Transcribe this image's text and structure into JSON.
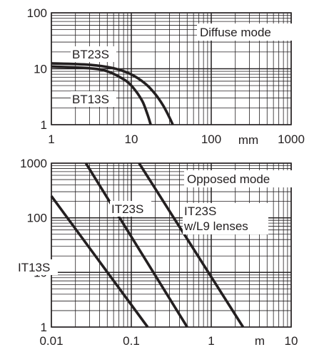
{
  "chart_data": [
    {
      "type": "line",
      "x_scale": "log",
      "y_scale": "log",
      "xlim": [
        1,
        1000
      ],
      "ylim": [
        1,
        100
      ],
      "x_tick_labels": [
        "1",
        "10",
        "100",
        "1000"
      ],
      "x_unit": "mm",
      "y_tick_labels": [
        "1",
        "10",
        "100"
      ],
      "grid": true,
      "mode_label": "Diffuse mode",
      "series": [
        {
          "name": "BT23S",
          "x": [
            1,
            3,
            6,
            10,
            15,
            20,
            25,
            30,
            33
          ],
          "y": [
            12.5,
            11.8,
            10.2,
            7.9,
            5.4,
            3.5,
            2.2,
            1.35,
            1.0
          ]
        },
        {
          "name": "BT13S",
          "x": [
            1,
            3,
            5,
            8,
            10,
            12,
            14,
            16,
            17.5
          ],
          "y": [
            11.0,
            10.2,
            9.0,
            6.5,
            5.0,
            3.6,
            2.5,
            1.5,
            1.0
          ]
        }
      ]
    },
    {
      "type": "line",
      "x_scale": "log",
      "y_scale": "log",
      "xlim": [
        0.01,
        10
      ],
      "ylim": [
        1,
        1000
      ],
      "x_tick_labels": [
        "0.01",
        "0.1",
        "1",
        "10"
      ],
      "x_unit": "m",
      "y_tick_labels": [
        "1",
        "10",
        "100",
        "1000"
      ],
      "grid": true,
      "mode_label": "Opposed mode",
      "series": [
        {
          "name": "IT13S",
          "x": [
            0.01,
            0.16
          ],
          "y": [
            250,
            1
          ]
        },
        {
          "name": "IT23S",
          "x": [
            0.027,
            0.5
          ],
          "y": [
            1000,
            1
          ]
        },
        {
          "name": "IT23S w/L9 lenses",
          "x": [
            0.125,
            2.5
          ],
          "y": [
            1000,
            1
          ]
        }
      ]
    }
  ]
}
